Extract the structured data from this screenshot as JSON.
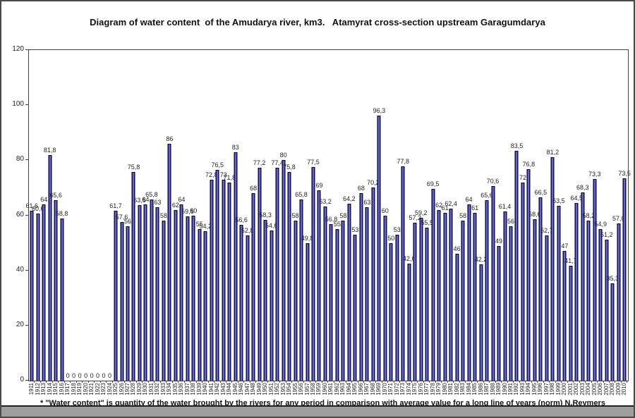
{
  "title": "Diagram of water content  of the Amudarya river, km3.   Atamyrat cross-section upstream Garagumdarya",
  "footnote": "* \"Water content\" is quantity of the water brought by the rivers for any period in comparison with average value for a long line of years (norm) N.Reymers",
  "colors": {
    "bar_fill_light": "#a2a2f2",
    "bar_fill_dark": "#222288",
    "bar_border": "#000040",
    "axis": "#404040",
    "text": "#222222",
    "bottom_strip": "#9e9e9e"
  },
  "chart_data": {
    "type": "bar",
    "title": "Diagram of water content  of the Amudarya river, km3.   Atamyrat cross-section upstream Garagumdarya",
    "xlabel": "",
    "ylabel": "",
    "ylim": [
      0,
      120
    ],
    "yticks": [
      0,
      20,
      40,
      60,
      80,
      100,
      120
    ],
    "grid": false,
    "legend": false,
    "years": [
      1911,
      1912,
      1913,
      1914,
      1915,
      1916,
      1917,
      1918,
      1919,
      1920,
      1921,
      1922,
      1923,
      1924,
      1925,
      1926,
      1927,
      1928,
      1929,
      1930,
      1931,
      1932,
      1933,
      1934,
      1935,
      1936,
      1937,
      1938,
      1939,
      1940,
      1941,
      1942,
      1943,
      1944,
      1945,
      1946,
      1947,
      1948,
      1949,
      1950,
      1951,
      1952,
      1953,
      1954,
      1955,
      1956,
      1957,
      1958,
      1959,
      1960,
      1961,
      1962,
      1963,
      1964,
      1965,
      1966,
      1967,
      1968,
      1969,
      1970,
      1971,
      1972,
      1973,
      1974,
      1975,
      1976,
      1977,
      1978,
      1979,
      1980,
      1981,
      1982,
      1983,
      1984,
      1985,
      1986,
      1987,
      1988,
      1989,
      1990,
      1991,
      1992,
      1993,
      1994,
      1995,
      1996,
      1997,
      1998,
      1999,
      2000,
      2001,
      2002,
      2003,
      2004,
      2005,
      2006,
      2007,
      2008,
      2009,
      2010
    ],
    "values": [
      61.6,
      60.6,
      64,
      81.8,
      65.6,
      58.8,
      0,
      0,
      0,
      0,
      0,
      0,
      0,
      0,
      61.7,
      57.6,
      56,
      75.8,
      63.6,
      64,
      65.8,
      63,
      58,
      86,
      62,
      64,
      59.6,
      60,
      55,
      54.2,
      72.8,
      76.5,
      73,
      71.8,
      83,
      56.6,
      52.8,
      68,
      77.2,
      58.3,
      54.6,
      77.4,
      80,
      75.8,
      58,
      65.8,
      49.8,
      77.5,
      69,
      63.2,
      56.8,
      55,
      58,
      64.2,
      53,
      68,
      63,
      70.2,
      96.3,
      60,
      50,
      53,
      77.8,
      42.6,
      57.2,
      59.2,
      55.5,
      69.5,
      62,
      61,
      62.4,
      46,
      58,
      64,
      61,
      42.2,
      65.6,
      70.6,
      49,
      61.4,
      56,
      83.5,
      72,
      76.8,
      58.6,
      66.5,
      52.7,
      81.2,
      63.5,
      47,
      41.7,
      64.5,
      68.3,
      58.2,
      73.3,
      54.9,
      51.2,
      35.3,
      57,
      73.5
    ],
    "labels": [
      "61,6",
      "60,6",
      "64",
      "81,8",
      "65,6",
      "58,8",
      "0",
      "0",
      "0",
      "0",
      "0",
      "0",
      "0",
      "0",
      "61,7",
      "57,6",
      "56",
      "75,8",
      "63,6",
      "64",
      "65,8",
      "63",
      "58",
      "86",
      "62",
      "64",
      "59,6",
      "60",
      "55",
      "54,2",
      "72,8",
      "76,5",
      "73",
      "71,8",
      "83",
      "56,6",
      "52,8",
      "68",
      "77,2",
      "58,3",
      "54,6",
      "77,4",
      "80",
      "75,8",
      "58",
      "65,8",
      "49,8",
      "77,5",
      "69",
      "63,2",
      "56,8",
      "55",
      "58",
      "64,2",
      "53",
      "68",
      "63",
      "70,2",
      "96,3",
      "60",
      "50",
      "53",
      "77,8",
      "42,6",
      "57,2",
      "59,2",
      "55,5",
      "69,5",
      "62",
      "61",
      "62,4",
      "46",
      "58",
      "64",
      "61",
      "42,2",
      "65,6",
      "70,6",
      "49",
      "61,4",
      "56",
      "83,5",
      "72",
      "76,8",
      "58,6",
      "66,5",
      "52,7",
      "81,2",
      "63,5",
      "47",
      "41,7",
      "64,5",
      "68,3",
      "58,2",
      "73,3",
      "54,9",
      "51,2",
      "35,3",
      "57,0",
      "73,5"
    ]
  }
}
